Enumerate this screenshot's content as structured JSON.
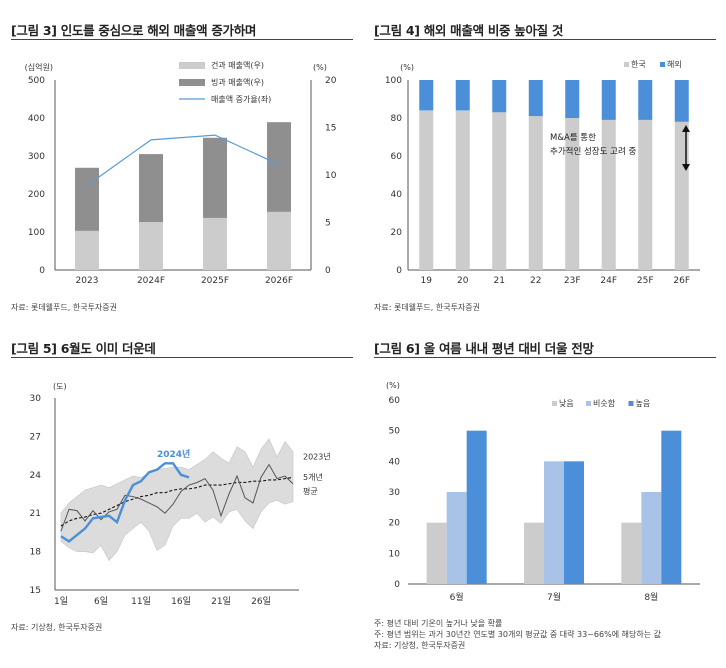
{
  "panels": {
    "p3": {
      "title": "[그림 3] 인도를 중심으로 해외 매출액 증가하며",
      "source": "자료: 롯데웰푸드, 한국투자증권"
    },
    "p4": {
      "title": "[그림 4] 해외 매출액 비중 높아질 것",
      "source": "자료: 롯데웰푸드, 한국투자증권"
    },
    "p5": {
      "title": "[그림 5] 6월도 이미 더운데",
      "source": "자료: 기상청, 한국투자증권"
    },
    "p6": {
      "title": "[그림 6] 올 여름 내내 평년 대비 더울 전망",
      "notes": [
        "주: 평년 대비 기온이 높거나 낮을 확률",
        "주: 평년 범위는 과거 30년간 연도별 30개의 평균값 중 대략 33~66%에 해당하는 값",
        "자료: 기상청, 한국투자증권"
      ]
    }
  },
  "colors": {
    "light_gray": "#cccccc",
    "dark_gray": "#8f8f8f",
    "line_blue": "#5b9bd5",
    "blue": "#4a8fd8",
    "light_blue": "#a9c3e8",
    "band_gray": "#dcdcdc",
    "black": "#222222"
  },
  "chart_data": [
    {
      "type": "bar",
      "stacked": true,
      "categories": [
        "2023",
        "2024F",
        "2025F",
        "2026F"
      ],
      "series": [
        {
          "name": "건과 매출액(우)",
          "values": [
            103,
            126,
            137,
            153
          ]
        },
        {
          "name": "빙과 매출액(우)",
          "values": [
            166,
            179,
            211,
            236
          ]
        }
      ],
      "line_series": {
        "name": "매출액 증가율(좌)",
        "values": [
          8.9,
          13.7,
          14.2,
          11.1
        ],
        "axis": "right"
      },
      "ylabel": "(십억원)",
      "y2label": "(%)",
      "ylim": [
        0,
        500
      ],
      "yticks": [
        0,
        100,
        200,
        300,
        400,
        500
      ],
      "y2lim": [
        0,
        20
      ],
      "y2ticks": [
        0,
        5,
        10,
        15,
        20
      ],
      "legend": "top-right"
    },
    {
      "type": "bar",
      "stacked": true,
      "categories": [
        "19",
        "20",
        "21",
        "22",
        "23F",
        "24F",
        "25F",
        "26F"
      ],
      "series": [
        {
          "name": "한국",
          "values": [
            84,
            84,
            83,
            81,
            80,
            79,
            79,
            78
          ]
        },
        {
          "name": "해외",
          "values": [
            16,
            16,
            17,
            19,
            20,
            21,
            21,
            22
          ]
        }
      ],
      "ylabel": "(%)",
      "ylim": [
        0,
        100
      ],
      "yticks": [
        0,
        20,
        40,
        60,
        80,
        100
      ],
      "annotation": [
        "M&A를 통한",
        "추가적인 성장도 고려 중"
      ],
      "legend": "top-right"
    },
    {
      "type": "line",
      "x": [
        1,
        2,
        3,
        4,
        5,
        6,
        7,
        8,
        9,
        10,
        11,
        12,
        13,
        14,
        15,
        16,
        17,
        18,
        19,
        20,
        21,
        22,
        23,
        24,
        25,
        26,
        27,
        28,
        29,
        30
      ],
      "xticks": [
        "1일",
        "6일",
        "11일",
        "16일",
        "21일",
        "26일"
      ],
      "xtick_values": [
        1,
        6,
        11,
        16,
        21,
        26
      ],
      "series": [
        {
          "name": "2024년",
          "values": [
            19.2,
            18.8,
            19.3,
            19.8,
            20.6,
            20.7,
            20.8,
            20.3,
            22.0,
            23.2,
            23.5,
            24.2,
            24.4,
            24.9,
            24.9,
            24.0,
            23.8,
            null,
            null,
            null,
            null,
            null,
            null,
            null,
            null,
            null,
            null,
            null,
            null,
            null
          ]
        },
        {
          "name": "2023년",
          "values": [
            19.6,
            21.3,
            21.2,
            20.4,
            21.2,
            20.5,
            21.1,
            21.3,
            22.4,
            22.3,
            22.1,
            21.8,
            21.5,
            21.0,
            21.7,
            22.7,
            23.2,
            23.4,
            23.7,
            22.8,
            20.8,
            22.5,
            23.9,
            22.2,
            21.8,
            23.8,
            24.8,
            23.7,
            23.9,
            23.3
          ]
        },
        {
          "name": "5개년 평균",
          "values": [
            20.0,
            20.4,
            20.6,
            20.7,
            20.9,
            21.0,
            21.3,
            21.6,
            21.9,
            22.1,
            22.3,
            22.4,
            22.6,
            22.6,
            22.8,
            22.9,
            22.9,
            23.0,
            23.2,
            23.2,
            23.2,
            23.3,
            23.4,
            23.4,
            23.5,
            23.5,
            23.6,
            23.6,
            23.7,
            23.8
          ]
        }
      ],
      "band": {
        "upper": [
          21.0,
          21.8,
          22.3,
          22.8,
          23.0,
          23.2,
          23.0,
          23.3,
          23.6,
          23.9,
          23.8,
          24.1,
          24.4,
          24.5,
          24.6,
          24.6,
          24.4,
          24.8,
          25.2,
          25.8,
          25.3,
          24.9,
          26.2,
          25.8,
          24.6,
          26.0,
          26.8,
          25.4,
          26.6,
          25.8
        ],
        "lower": [
          18.8,
          18.3,
          18.0,
          18.0,
          17.9,
          18.5,
          17.3,
          18.0,
          19.3,
          19.8,
          20.3,
          19.6,
          18.1,
          18.5,
          20.0,
          20.6,
          20.6,
          21.0,
          20.3,
          20.7,
          20.2,
          21.1,
          21.3,
          20.4,
          19.8,
          21.1,
          21.8,
          22.0,
          21.7,
          21.9
        ]
      },
      "ylabel": "(도)",
      "ylim": [
        15,
        30
      ],
      "yticks": [
        15,
        18,
        21,
        24,
        27,
        30
      ],
      "legend": "inline-right"
    },
    {
      "type": "bar",
      "categories": [
        "6월",
        "7월",
        "8월"
      ],
      "series": [
        {
          "name": "낮음",
          "values": [
            20,
            20,
            20
          ]
        },
        {
          "name": "비슷함",
          "values": [
            30,
            40,
            30
          ]
        },
        {
          "name": "높음",
          "values": [
            50,
            40,
            50
          ]
        }
      ],
      "ylabel": "(%)",
      "ylim": [
        0,
        60
      ],
      "yticks": [
        0,
        10,
        20,
        30,
        40,
        50,
        60
      ],
      "legend": "top-right"
    }
  ]
}
